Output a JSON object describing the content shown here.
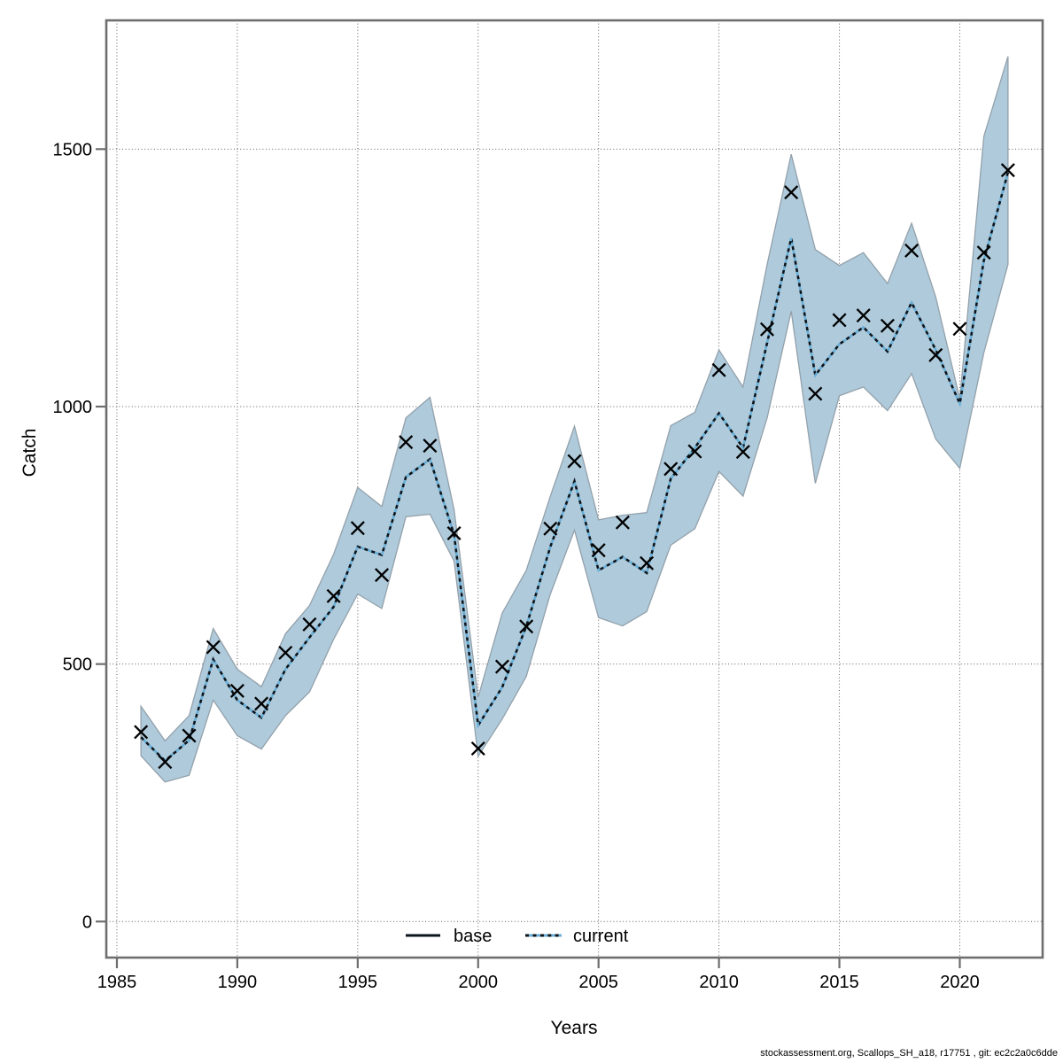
{
  "footer": "stockassessment.org, Scallops_SH_a18, r17751 , git: ec2c2a0c6dde",
  "axes": {
    "x_label": "Years",
    "y_label": "Catch",
    "x_ticks": [
      1985,
      1990,
      1995,
      2000,
      2005,
      2010,
      2015,
      2020
    ],
    "y_ticks": [
      0,
      500,
      1000,
      1500
    ]
  },
  "legend": {
    "items": [
      {
        "label": "base",
        "style": "solid"
      },
      {
        "label": "current",
        "style": "dotted"
      }
    ]
  },
  "colors": {
    "band_fill": "#aecadb",
    "band_edge": "#93a1ab",
    "line_dark": "#0c141c",
    "line_blue": "#68aed6",
    "marker": "#000000",
    "grid": "#606060",
    "frame": "#6e6e6e",
    "tick": "#6e6e6e",
    "text": "#000000"
  },
  "chart_data": {
    "type": "line",
    "title": "",
    "xlabel": "Years",
    "ylabel": "Catch",
    "grid": true,
    "legend_position": "bottom-center",
    "x_range": [
      1984.56,
      2023.44
    ],
    "y_range": [
      -70,
      1750
    ],
    "x": [
      1986,
      1987,
      1988,
      1989,
      1990,
      1991,
      1992,
      1993,
      1994,
      1995,
      1996,
      1997,
      1998,
      1999,
      2000,
      2001,
      2002,
      2003,
      2004,
      2005,
      2006,
      2007,
      2008,
      2009,
      2010,
      2011,
      2012,
      2013,
      2014,
      2015,
      2016,
      2017,
      2018,
      2019,
      2020,
      2021,
      2022
    ],
    "series": [
      {
        "name": "observed_catch",
        "marker": "x",
        "line": "none",
        "values": [
          368,
          310,
          361,
          533,
          448,
          423,
          522,
          577,
          632,
          764,
          673,
          931,
          924,
          754,
          336,
          495,
          573,
          763,
          894,
          721,
          775,
          696,
          879,
          913,
          1071,
          912,
          1150,
          1416,
          1025,
          1168,
          1177,
          1157,
          1303,
          1100,
          1151,
          1299,
          1459
        ]
      },
      {
        "name": "base",
        "marker": "none",
        "line": "solid",
        "values": [
          358,
          312,
          352,
          509,
          430,
          396,
          490,
          552,
          611,
          728,
          712,
          863,
          898,
          751,
          381,
          455,
          573,
          728,
          855,
          682,
          708,
          677,
          860,
          920,
          987,
          920,
          1124,
          1327,
          1061,
          1121,
          1154,
          1107,
          1202,
          1110,
          1006,
          1284,
          1455
        ]
      },
      {
        "name": "current",
        "marker": "none",
        "line": "dotted",
        "values": [
          358,
          312,
          352,
          509,
          430,
          396,
          490,
          552,
          611,
          728,
          712,
          863,
          898,
          751,
          381,
          455,
          573,
          728,
          855,
          682,
          708,
          677,
          860,
          920,
          987,
          920,
          1124,
          1327,
          1061,
          1121,
          1154,
          1107,
          1202,
          1110,
          1006,
          1284,
          1455
        ]
      }
    ],
    "band": {
      "name": "current_confidence_interval",
      "lo": [
        322,
        271,
        284,
        430,
        361,
        335,
        400,
        446,
        548,
        636,
        608,
        786,
        791,
        700,
        321,
        393,
        476,
        636,
        760,
        590,
        574,
        602,
        731,
        763,
        874,
        826,
        978,
        1185,
        851,
        1021,
        1038,
        992,
        1064,
        937,
        880,
        1105,
        1276
      ],
      "hi": [
        418,
        351,
        400,
        569,
        490,
        456,
        559,
        614,
        713,
        843,
        806,
        978,
        1018,
        800,
        436,
        599,
        682,
        826,
        962,
        780,
        789,
        794,
        963,
        989,
        1110,
        1038,
        1276,
        1490,
        1305,
        1274,
        1299,
        1239,
        1356,
        1213,
        1015,
        1525,
        1680
      ]
    }
  }
}
